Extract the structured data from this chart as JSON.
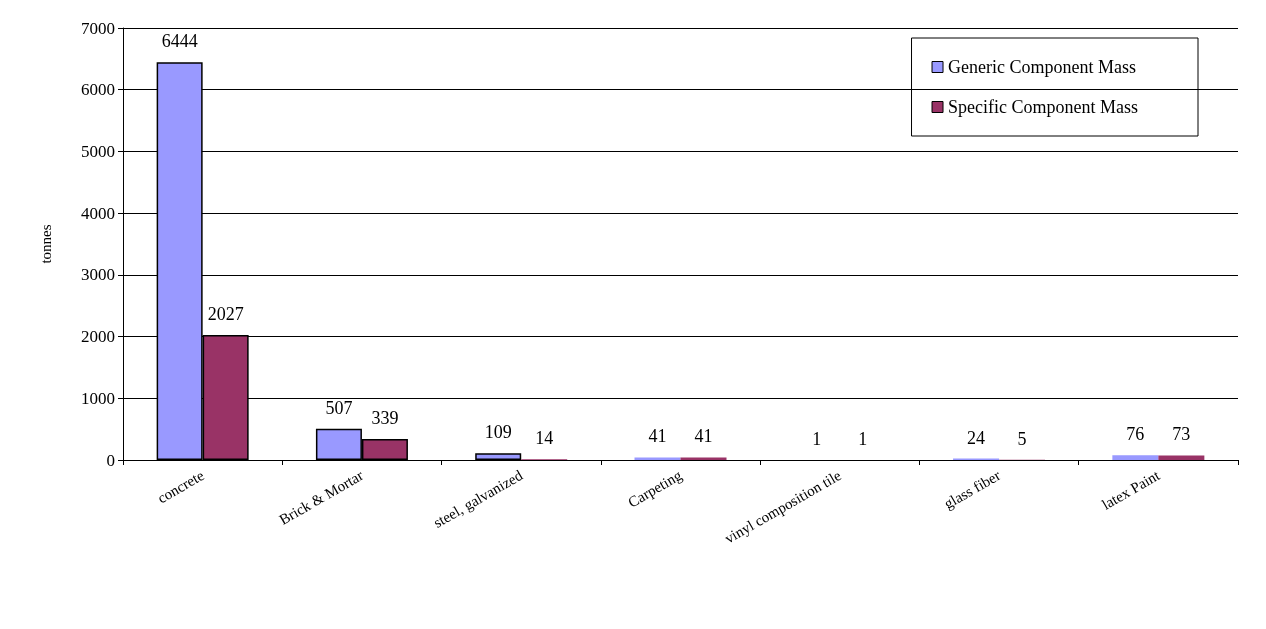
{
  "chart_data": {
    "type": "bar",
    "ylabel": "tonnes",
    "categories": [
      "concrete",
      "Brick & Mortar",
      "steel, galvanized",
      "Carpeting",
      "vinyl composition tile",
      "glass fiber",
      "latex Paint"
    ],
    "series": [
      {
        "name": "Generic Component Mass",
        "color": "#9999ff",
        "values": [
          6444,
          507,
          109,
          41,
          1,
          24,
          76
        ]
      },
      {
        "name": "Specific Component Mass",
        "color": "#993366",
        "values": [
          2027,
          339,
          14,
          41,
          1,
          5,
          73
        ]
      }
    ],
    "ylim": [
      0,
      7000
    ],
    "yticks": [
      0,
      1000,
      2000,
      3000,
      4000,
      5000,
      6000,
      7000
    ],
    "grid": "y",
    "legend": "top right",
    "data_labels": true
  }
}
